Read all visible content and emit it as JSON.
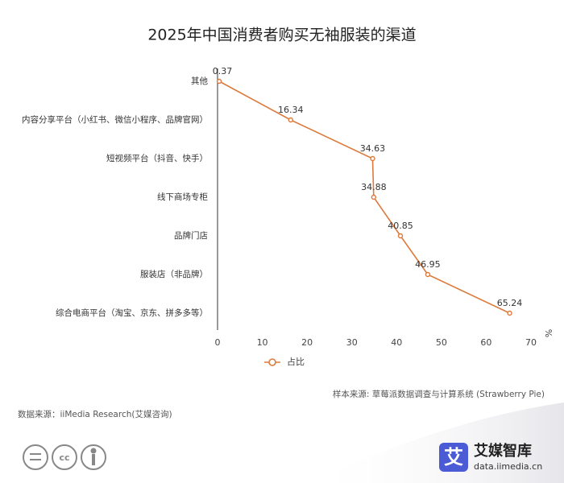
{
  "chart_data": {
    "type": "line",
    "title": "2025年中国消费者购买无袖服装的渠道",
    "categories": [
      "其他",
      "内容分享平台（小红书、微信小程序、品牌官网）",
      "短视频平台（抖音、快手）",
      "线下商场专柜",
      "品牌门店",
      "服装店（非品牌）",
      "综合电商平台（淘宝、京东、拼多多等）"
    ],
    "series": [
      {
        "name": "占比",
        "color": "#dd7a3c",
        "values": [
          0.37,
          16.34,
          34.63,
          34.88,
          40.85,
          46.95,
          65.24
        ]
      }
    ],
    "xlim": [
      0,
      70
    ],
    "xticks": [
      0,
      10,
      20,
      30,
      40,
      50,
      60,
      70
    ],
    "x_label": "%",
    "sample_source": "样本来源: 草莓派数据调查与计算系统 (Strawberry Pie)",
    "data_source": "数据来源：iiMedia Research(艾媒咨询)",
    "brand": "艾媒智库",
    "brand_url": "data.iimedia.cn",
    "brand_icon": "艾"
  }
}
